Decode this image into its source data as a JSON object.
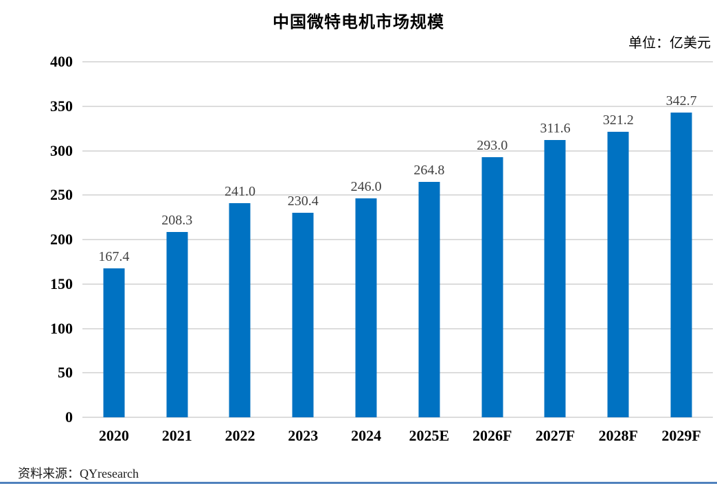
{
  "chart": {
    "title": "中国微特电机市场规模",
    "unit": "单位：亿美元"
  },
  "chart_data": {
    "type": "bar",
    "title": "中国微特电机市场规模",
    "unit_label": "单位：亿美元",
    "categories": [
      "2020",
      "2021",
      "2022",
      "2023",
      "2024",
      "2025E",
      "2026F",
      "2027F",
      "2028F",
      "2029F"
    ],
    "values": [
      167.4,
      208.3,
      241.0,
      230.4,
      246.0,
      264.8,
      293.0,
      311.6,
      321.2,
      342.7
    ],
    "xlabel": "",
    "ylabel": "",
    "ylim": [
      0,
      400
    ],
    "yticks": [
      0,
      50,
      100,
      150,
      200,
      250,
      300,
      350,
      400
    ],
    "grid": true,
    "legend": "none",
    "bar_color": "#0072C2",
    "value_label_color": "#404040",
    "gridline_color": "#DCDCDC",
    "bottom_rule_color": "#4F81BD"
  },
  "source": {
    "label": "资料来源：QYresearch"
  }
}
